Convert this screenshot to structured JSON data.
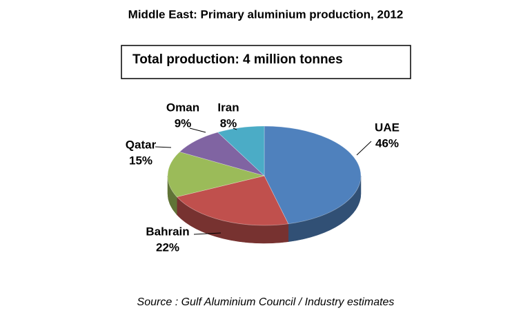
{
  "chart_data": {
    "type": "pie",
    "title": "Middle East: Primary aluminium production, 2012",
    "annotation": "Total production: 4 million tonnes",
    "source": "Source : Gulf Aluminium Council / Industry estimates",
    "categories": [
      "UAE",
      "Bahrain",
      "Qatar",
      "Oman",
      "Iran"
    ],
    "values": [
      46,
      22,
      15,
      9,
      8
    ],
    "value_labels": [
      "46%",
      "22%",
      "15%",
      "9%",
      "8%"
    ],
    "colors": [
      "#4f81bd",
      "#c0504d",
      "#9bbb59",
      "#8064a2",
      "#4bacc6"
    ]
  }
}
